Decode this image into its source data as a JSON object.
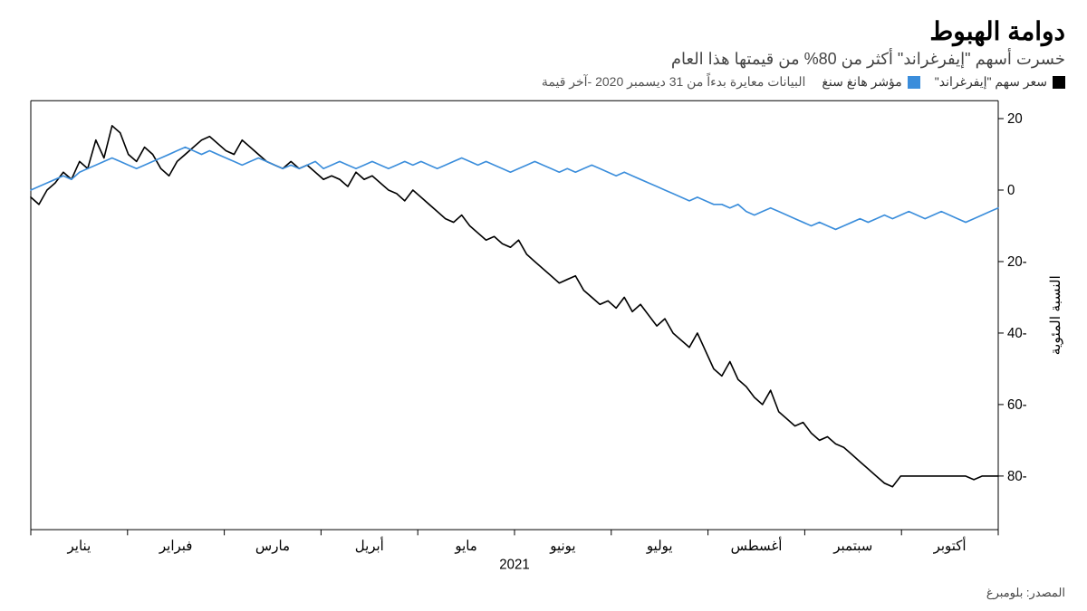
{
  "title": "دوامة الهبوط",
  "subtitle": "خسرت أسهم \"إيفرغراند\" أكثر من 80% من قيمتها هذا العام",
  "note": "البيانات معايرة بدءاً من 31 ديسمبر 2020 -آخر قيمة",
  "legend": {
    "series1": {
      "label": "سعر سهم \"إيفرغراند\"",
      "color": "#000000"
    },
    "series2": {
      "label": "مؤشر هانغ سنغ",
      "color": "#3a8ddb"
    }
  },
  "source": "المصدر: بلومبرغ",
  "chart": {
    "type": "line",
    "background_color": "#ffffff",
    "axis_color": "#000000",
    "grid_color": "#d0d0d0",
    "line_width": 1.6,
    "y_axis": {
      "label": "النسبة المئوية",
      "ticks": [
        20,
        0,
        -20,
        -40,
        -60,
        -80
      ],
      "min": -95,
      "max": 25,
      "side": "right"
    },
    "x_axis": {
      "ticks": [
        "يناير",
        "فبراير",
        "مارس",
        "أبريل",
        "مايو",
        "يونيو",
        "يوليو",
        "أغسطس",
        "سبتمبر",
        "أكتوبر"
      ],
      "year_label": "2021"
    },
    "series": [
      {
        "name": "evergrande",
        "color": "#000000",
        "values": [
          -2,
          -4,
          0,
          2,
          5,
          3,
          8,
          6,
          14,
          9,
          18,
          16,
          10,
          8,
          12,
          10,
          6,
          4,
          8,
          10,
          12,
          14,
          15,
          13,
          11,
          10,
          14,
          12,
          10,
          8,
          7,
          6,
          8,
          6,
          7,
          5,
          3,
          4,
          3,
          1,
          5,
          3,
          4,
          2,
          0,
          -1,
          -3,
          0,
          -2,
          -4,
          -6,
          -8,
          -9,
          -7,
          -10,
          -12,
          -14,
          -13,
          -15,
          -16,
          -14,
          -18,
          -20,
          -22,
          -24,
          -26,
          -25,
          -24,
          -28,
          -30,
          -32,
          -31,
          -33,
          -30,
          -34,
          -32,
          -35,
          -38,
          -36,
          -40,
          -42,
          -44,
          -40,
          -45,
          -50,
          -52,
          -48,
          -53,
          -55,
          -58,
          -60,
          -56,
          -62,
          -64,
          -66,
          -65,
          -68,
          -70,
          -69,
          -71,
          -72,
          -74,
          -76,
          -78,
          -80,
          -82,
          -83,
          -80,
          -80,
          -80,
          -80,
          -80,
          -80,
          -80,
          -80,
          -80,
          -81,
          -80,
          -80,
          -80
        ]
      },
      {
        "name": "hang_seng",
        "color": "#3a8ddb",
        "values": [
          0,
          1,
          2,
          3,
          4,
          3,
          5,
          6,
          7,
          8,
          9,
          8,
          7,
          6,
          7,
          8,
          9,
          10,
          11,
          12,
          11,
          10,
          11,
          10,
          9,
          8,
          7,
          8,
          9,
          8,
          7,
          6,
          7,
          6,
          7,
          8,
          6,
          7,
          8,
          7,
          6,
          7,
          8,
          7,
          6,
          7,
          8,
          7,
          8,
          7,
          6,
          7,
          8,
          9,
          8,
          7,
          8,
          7,
          6,
          5,
          6,
          7,
          8,
          7,
          6,
          5,
          6,
          5,
          6,
          7,
          6,
          5,
          4,
          5,
          4,
          3,
          2,
          1,
          0,
          -1,
          -2,
          -3,
          -2,
          -3,
          -4,
          -4,
          -5,
          -4,
          -6,
          -7,
          -6,
          -5,
          -6,
          -7,
          -8,
          -9,
          -10,
          -9,
          -10,
          -11,
          -10,
          -9,
          -8,
          -9,
          -8,
          -7,
          -8,
          -7,
          -6,
          -7,
          -8,
          -7,
          -6,
          -7,
          -8,
          -9,
          -8,
          -7,
          -6,
          -5
        ]
      }
    ]
  }
}
